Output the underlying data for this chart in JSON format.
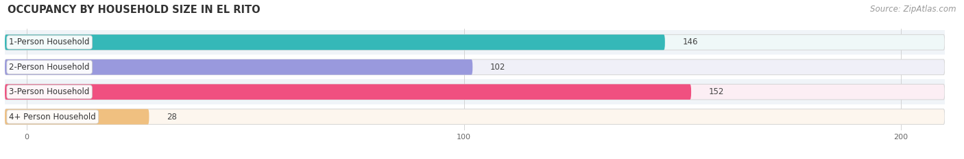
{
  "title": "OCCUPANCY BY HOUSEHOLD SIZE IN EL RITO",
  "source": "Source: ZipAtlas.com",
  "categories": [
    "1-Person Household",
    "2-Person Household",
    "3-Person Household",
    "4+ Person Household"
  ],
  "values": [
    146,
    102,
    152,
    28
  ],
  "bar_colors": [
    "#35b8b8",
    "#9999dd",
    "#f05080",
    "#f0c080"
  ],
  "bar_bg_colors": [
    "#eff8f8",
    "#f0f0f8",
    "#fceef4",
    "#fdf6ee"
  ],
  "xlim": [
    -5,
    210
  ],
  "xticks": [
    0,
    100,
    200
  ],
  "title_fontsize": 10.5,
  "source_fontsize": 8.5,
  "label_fontsize": 8.5,
  "value_fontsize": 8.5,
  "background_color": "#ffffff",
  "bar_height": 0.62,
  "bar_gap": 0.18,
  "figsize": [
    14.06,
    2.33
  ],
  "dpi": 100
}
